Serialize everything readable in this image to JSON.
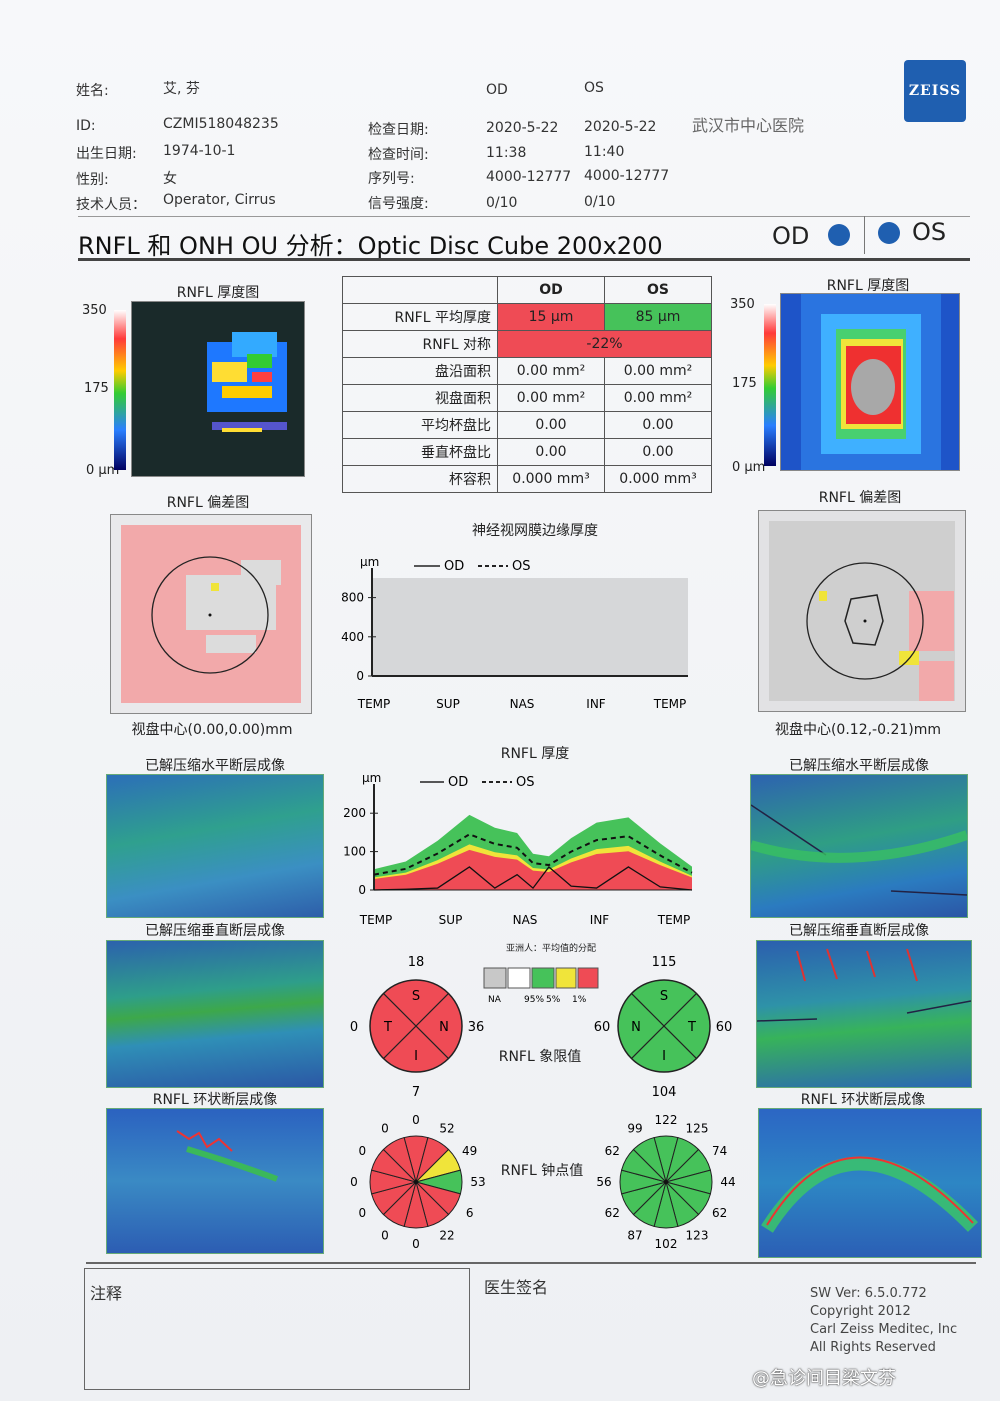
{
  "header": {
    "name_label": "姓名:",
    "name_value": "艾, 芬",
    "id_label": "ID:",
    "id_value": "CZMI518048235",
    "dob_label": "出生日期:",
    "dob_value": "1974-10-1",
    "sex_label": "性别:",
    "sex_value": "女",
    "tech_label": "技术人员：",
    "tech_value": "Operator, Cirrus",
    "col_od": "OD",
    "col_os": "OS",
    "exam_date_label": "检查日期:",
    "exam_date_od": "2020-5-22",
    "exam_date_os": "2020-5-22",
    "exam_time_label": "检查时间:",
    "exam_time_od": "11:38",
    "exam_time_os": "11:40",
    "serial_label": "序列号:",
    "serial_od": "4000-12777",
    "serial_os": "4000-12777",
    "signal_label": "信号强度:",
    "signal_od": "0/10",
    "signal_os": "0/10",
    "hospital": "武汉市中心医院",
    "brand": "ZEISS"
  },
  "report_title": "RNFL 和 ONH OU 分析：Optic Disc Cube 200x200",
  "eye_od": "OD",
  "eye_os": "OS",
  "thickness_map": {
    "title": "RNFL 厚度图",
    "scale_max": "350",
    "scale_mid": "175",
    "scale_min": "0 μm"
  },
  "deviation_map": {
    "title": "RNFL 偏差图",
    "od_center": "视盘中心(0.00,0.00)mm",
    "os_center": "视盘中心(0.12,-0.21)mm"
  },
  "param_table": {
    "col_od": "OD",
    "col_os": "OS",
    "rows": [
      {
        "label": "RNFL 平均厚度",
        "od": "15 µm",
        "os": "85 µm"
      },
      {
        "label": "RNFL 对称",
        "both": "-22%"
      },
      {
        "label": "盘沿面积",
        "od": "0.00 mm²",
        "os": "0.00 mm²"
      },
      {
        "label": "视盘面积",
        "od": "0.00 mm²",
        "os": "0.00 mm²"
      },
      {
        "label": "平均杯盘比",
        "od": "0.00",
        "os": "0.00"
      },
      {
        "label": "垂直杯盘比",
        "od": "0.00",
        "os": "0.00"
      },
      {
        "label": "杯容积",
        "od": "0.000 mm³",
        "os": "0.000 mm³"
      }
    ]
  },
  "chart_data": [
    {
      "type": "line",
      "title": "神经视网膜边缘厚度",
      "ylabel": "μm",
      "legend": [
        "OD",
        "OS"
      ],
      "categories": [
        "TEMP",
        "SUP",
        "NAS",
        "INF",
        "TEMP"
      ],
      "yticks": [
        "800",
        "400",
        "0"
      ],
      "ylim": [
        0,
        1000
      ],
      "series": [
        {
          "name": "OD",
          "values": [
            0,
            0,
            0,
            0,
            0
          ]
        },
        {
          "name": "OS",
          "values": [
            0,
            0,
            0,
            0,
            0
          ]
        }
      ]
    },
    {
      "type": "line",
      "title": "RNFL 厚度",
      "ylabel": "μm",
      "legend": [
        "OD",
        "OS"
      ],
      "categories": [
        "TEMP",
        "SUP",
        "NAS",
        "INF",
        "TEMP"
      ],
      "yticks": [
        "200",
        "100",
        "0"
      ],
      "ylim": [
        0,
        250
      ],
      "series": [
        {
          "name": "OD",
          "x": [
            0,
            0.1,
            0.2,
            0.3,
            0.38,
            0.45,
            0.5,
            0.55,
            0.62,
            0.7,
            0.8,
            0.9,
            1.0
          ],
          "values": [
            0,
            2,
            5,
            60,
            5,
            40,
            5,
            60,
            10,
            5,
            60,
            8,
            0
          ]
        },
        {
          "name": "OS",
          "x": [
            0,
            0.1,
            0.2,
            0.3,
            0.38,
            0.45,
            0.5,
            0.55,
            0.62,
            0.7,
            0.8,
            0.9,
            1.0
          ],
          "values": [
            40,
            55,
            95,
            145,
            120,
            110,
            70,
            65,
            100,
            130,
            140,
            90,
            45
          ]
        }
      ]
    },
    {
      "type": "pie",
      "title": "RNFL 象限值",
      "eye": "OD",
      "labels": [
        "S",
        "N",
        "I",
        "T"
      ],
      "values": [
        18,
        36,
        7,
        0
      ]
    },
    {
      "type": "pie",
      "title": "RNFL 象限值",
      "eye": "OS",
      "labels": [
        "S",
        "T",
        "I",
        "N"
      ],
      "values": [
        115,
        60,
        104,
        60
      ]
    },
    {
      "type": "pie",
      "title": "RNFL 钟点值",
      "eye": "OD",
      "values": [
        0,
        52,
        49,
        53,
        6,
        22,
        0,
        0,
        0,
        0,
        0,
        0
      ]
    },
    {
      "type": "pie",
      "title": "RNFL 钟点值",
      "eye": "OS",
      "values": [
        122,
        125,
        74,
        44,
        62,
        123,
        102,
        87,
        62,
        56,
        62,
        99
      ]
    }
  ],
  "quadrant": {
    "title": "RNFL 象限值",
    "od": {
      "s": "18",
      "n": "36",
      "i": "7",
      "t": "0",
      "letters": [
        "S",
        "N",
        "I",
        "T"
      ]
    },
    "os": {
      "s": "115",
      "t": "60",
      "i": "104",
      "n": "60",
      "letters": [
        "S",
        "T",
        "I",
        "N"
      ]
    }
  },
  "clock": {
    "title": "RNFL 钟点值",
    "od": [
      "0",
      "52",
      "49",
      "53",
      "6",
      "22",
      "0",
      "0",
      "0",
      "0",
      "0",
      "0"
    ],
    "os": [
      "122",
      "125",
      "74",
      "44",
      "62",
      "123",
      "102",
      "87",
      "62",
      "56",
      "62",
      "99"
    ]
  },
  "legend": {
    "title": "亚洲人：平均值的分配",
    "na": "NA",
    "p95": "95%",
    "p5": "5%",
    "p1": "1%"
  },
  "scans": {
    "horizontal": "已解压缩水平断层成像",
    "vertical": "已解压缩垂直断层成像",
    "circular": "RNFL 环状断层成像"
  },
  "footer": {
    "notes_label": "注释",
    "signature_label": "医生签名",
    "sw": "SW Ver: 6.5.0.772",
    "copyright": "Copyright 2012",
    "company": "Carl Zeiss Meditec, Inc",
    "rights": "All Rights Reserved",
    "watermark": "@急诊间目梁文芬"
  },
  "colors": {
    "red": "#ef4b55",
    "green": "#46c25a",
    "yellow": "#f0e43a",
    "pink": "#f2a9aa",
    "gray": "#c8c8c8"
  }
}
